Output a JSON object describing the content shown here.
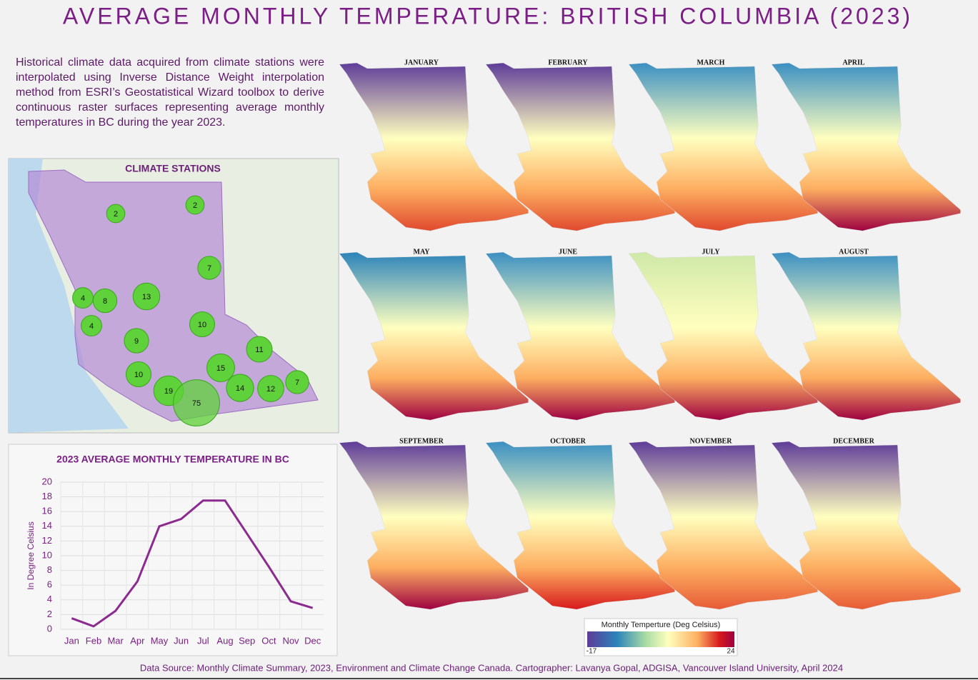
{
  "title": "AVERAGE MONTHLY TEMPERATURE: BRITISH COLUMBIA (2023)",
  "description": "Historical climate data acquired from climate stations were interpolated using Inverse Distance Weight interpolation method from ESRI’s Geostatistical Wizard toolbox to derive continuous raster surfaces representing average monthly temperatures in BC during the year 2023.",
  "stations": {
    "title": "CLIMATE STATIONS",
    "clusters": [
      2,
      2,
      7,
      4,
      8,
      13,
      4,
      10,
      9,
      11,
      15,
      10,
      19,
      14,
      12,
      7,
      75
    ]
  },
  "chart_data": {
    "type": "line",
    "title": "2023 AVERAGE MONTHLY TEMPERATURE IN BC",
    "y_label": "In Degree Celsius",
    "categories": [
      "Jan",
      "Feb",
      "Mar",
      "Apr",
      "May",
      "Jun",
      "Jul",
      "Aug",
      "Sep",
      "Oct",
      "Nov",
      "Dec"
    ],
    "values": [
      1.5,
      0.4,
      2.5,
      6.5,
      14,
      15,
      17.5,
      17.5,
      13,
      8.5,
      3.8,
      2.9
    ],
    "color": "#8b2b8f",
    "ylim": [
      0,
      20
    ],
    "yticks": [
      0,
      2,
      4,
      6,
      8,
      10,
      12,
      14,
      16,
      18,
      20
    ],
    "grid": true
  },
  "maps": {
    "months": [
      "JANUARY",
      "FEBRUARY",
      "MARCH",
      "APRIL",
      "MAY",
      "JUNE",
      "JULY",
      "AUGUST",
      "SEPTEMBER",
      "OCTOBER",
      "NOVEMBER",
      "DECEMBER"
    ]
  },
  "legend": {
    "title": "Monthly Temperture (Deg Celsius)",
    "min": "-17",
    "max": "24"
  },
  "footer": "Data Source: Monthly Climate Summary, 2023, Environment and Climate Change Canada. Cartographer: Lavanya Gopal, ADGISA, Vancouver Island University, April 2024"
}
